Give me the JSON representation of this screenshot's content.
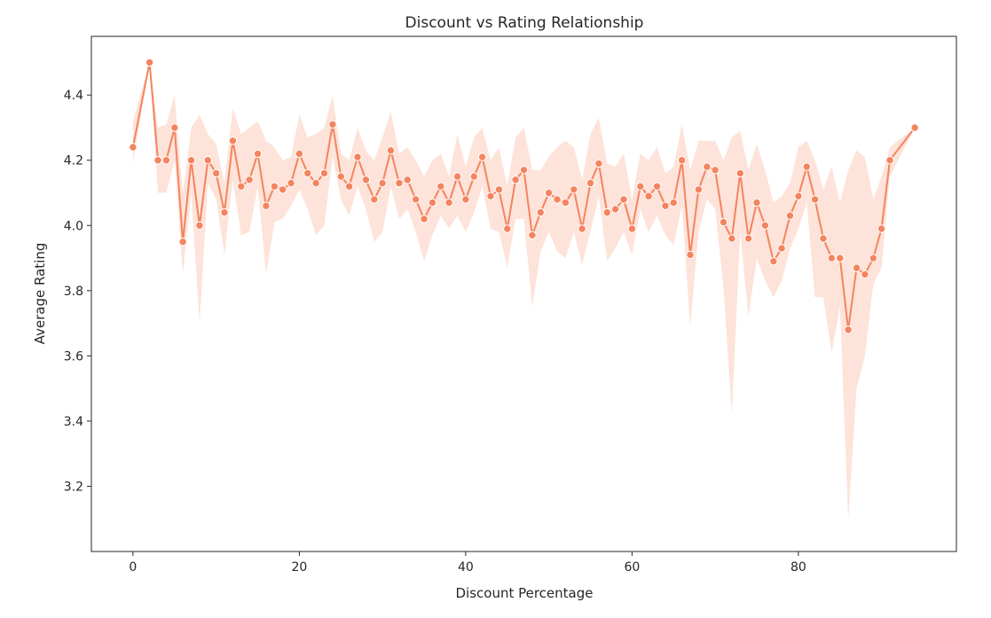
{
  "chart_data": {
    "type": "line",
    "title": "Discount vs Rating Relationship",
    "xlabel": "Discount Percentage",
    "ylabel": "Average Rating",
    "xlim": [
      -5,
      99
    ],
    "ylim": [
      3.0,
      4.58
    ],
    "xticks": [
      0,
      20,
      40,
      60,
      80
    ],
    "yticks": [
      3.2,
      3.4,
      3.6,
      3.8,
      4.0,
      4.2,
      4.4
    ],
    "grid": false,
    "legend": "none",
    "line_color": "#f4845f",
    "band_color": "#fcd9cc",
    "series": [
      {
        "x": [
          0,
          2,
          3,
          4,
          5,
          6,
          7,
          8,
          9,
          10,
          11,
          12,
          13,
          14,
          15,
          16,
          17,
          18,
          19,
          20,
          21,
          22,
          23,
          24,
          25,
          26,
          27,
          28,
          29,
          30,
          31,
          32,
          33,
          34,
          35,
          36,
          37,
          38,
          39,
          40,
          41,
          42,
          43,
          44,
          45,
          46,
          47,
          48,
          49,
          50,
          51,
          52,
          53,
          54,
          55,
          56,
          57,
          58,
          59,
          60,
          61,
          62,
          63,
          64,
          65,
          66,
          67,
          68,
          69,
          70,
          71,
          72,
          73,
          74,
          75,
          76,
          77,
          78,
          79,
          80,
          81,
          82,
          83,
          84,
          85,
          86,
          87,
          88,
          89,
          90,
          91,
          94
        ],
        "y": [
          4.24,
          4.5,
          4.2,
          4.2,
          4.3,
          3.95,
          4.2,
          4.0,
          4.2,
          4.16,
          4.04,
          4.26,
          4.12,
          4.14,
          4.22,
          4.06,
          4.12,
          4.11,
          4.13,
          4.22,
          4.16,
          4.13,
          4.16,
          4.31,
          4.15,
          4.12,
          4.21,
          4.14,
          4.08,
          4.13,
          4.23,
          4.13,
          4.14,
          4.08,
          4.02,
          4.07,
          4.12,
          4.07,
          4.15,
          4.08,
          4.15,
          4.21,
          4.09,
          4.11,
          3.99,
          4.14,
          4.17,
          3.97,
          4.04,
          4.1,
          4.08,
          4.07,
          4.11,
          3.99,
          4.13,
          4.19,
          4.04,
          4.05,
          4.08,
          3.99,
          4.12,
          4.09,
          4.12,
          4.06,
          4.07,
          4.2,
          3.91,
          4.11,
          4.18,
          4.17,
          4.01,
          3.96,
          4.16,
          3.96,
          4.07,
          4.0,
          3.89,
          3.93,
          4.03,
          4.09,
          4.18,
          4.08,
          3.96,
          3.9,
          3.9,
          3.68,
          3.87,
          3.85,
          3.9,
          3.99,
          4.2,
          4.3
        ],
        "ci_low": [
          4.19,
          4.5,
          4.1,
          4.1,
          4.2,
          3.85,
          4.1,
          3.7,
          4.13,
          4.08,
          3.91,
          4.14,
          3.97,
          3.98,
          4.12,
          3.85,
          4.01,
          4.02,
          4.06,
          4.11,
          4.05,
          3.97,
          4.0,
          4.21,
          4.08,
          4.03,
          4.12,
          4.05,
          3.95,
          3.98,
          4.12,
          4.02,
          4.05,
          3.98,
          3.89,
          3.97,
          4.03,
          3.99,
          4.03,
          3.98,
          4.04,
          4.12,
          3.99,
          3.98,
          3.87,
          4.02,
          4.02,
          3.75,
          3.92,
          3.98,
          3.92,
          3.9,
          3.98,
          3.88,
          3.98,
          4.09,
          3.89,
          3.93,
          3.98,
          3.91,
          4.05,
          3.98,
          4.03,
          3.97,
          3.94,
          4.06,
          3.69,
          3.98,
          4.08,
          4.05,
          3.81,
          3.42,
          3.98,
          3.72,
          3.9,
          3.83,
          3.78,
          3.83,
          3.93,
          3.99,
          4.07,
          3.78,
          3.78,
          3.61,
          3.75,
          3.1,
          3.5,
          3.6,
          3.82,
          3.87,
          4.15,
          4.3
        ],
        "ci_high": [
          4.32,
          4.5,
          4.3,
          4.31,
          4.4,
          4.1,
          4.3,
          4.34,
          4.28,
          4.25,
          4.13,
          4.36,
          4.28,
          4.3,
          4.32,
          4.26,
          4.24,
          4.2,
          4.21,
          4.34,
          4.27,
          4.28,
          4.3,
          4.4,
          4.22,
          4.2,
          4.3,
          4.23,
          4.2,
          4.27,
          4.35,
          4.22,
          4.24,
          4.2,
          4.15,
          4.2,
          4.22,
          4.15,
          4.28,
          4.18,
          4.27,
          4.3,
          4.2,
          4.24,
          4.12,
          4.27,
          4.3,
          4.17,
          4.17,
          4.21,
          4.24,
          4.26,
          4.24,
          4.14,
          4.28,
          4.33,
          4.19,
          4.18,
          4.22,
          4.08,
          4.22,
          4.2,
          4.24,
          4.16,
          4.18,
          4.31,
          4.17,
          4.26,
          4.26,
          4.26,
          4.2,
          4.27,
          4.29,
          4.17,
          4.25,
          4.17,
          4.07,
          4.09,
          4.13,
          4.24,
          4.26,
          4.2,
          4.11,
          4.18,
          4.07,
          4.17,
          4.23,
          4.21,
          4.08,
          4.15,
          4.24,
          4.3
        ]
      }
    ]
  }
}
